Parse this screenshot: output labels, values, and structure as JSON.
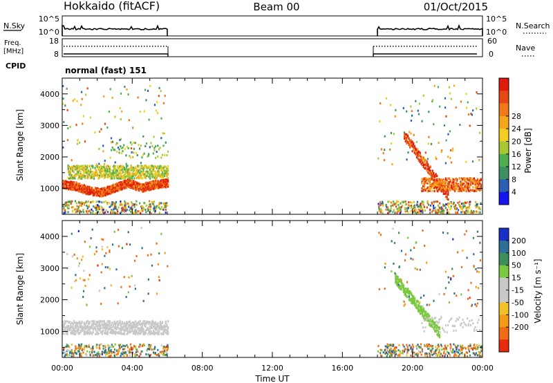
{
  "header": {
    "station": "Hokkaido (fitACF)",
    "beam": "Beam 00",
    "date": "01/Oct/2015"
  },
  "noise_panel": {
    "left_label": "N.Sky",
    "right_label": "N.Search",
    "left_ticks": [
      "10^5",
      "10^0"
    ],
    "right_ticks": [
      "10^5",
      "10^0"
    ]
  },
  "freq_panel": {
    "left_label_line1": "Freq.",
    "left_label_line2": "[MHz]",
    "right_label": "Nave",
    "left_ticks": [
      "18",
      "8"
    ],
    "right_ticks": [
      "60",
      "0"
    ]
  },
  "cpid": {
    "label": "CPID",
    "mode": "normal (fast) 151"
  },
  "time_axis": {
    "label": "Time UT",
    "ticks": [
      "00:00",
      "04:00",
      "08:00",
      "12:00",
      "16:00",
      "20:00",
      "00:00"
    ]
  },
  "chart_data": [
    {
      "type": "heatmap",
      "name": "power",
      "ylabel": "Slant Range [km]",
      "ylim": [
        180,
        4500
      ],
      "yticks": [
        "1000",
        "2000",
        "3000",
        "4000"
      ],
      "xlim": [
        0,
        24
      ],
      "colorbar_label": "Power [dB]",
      "colorbar_ticks": [
        "4",
        "8",
        "12",
        "16",
        "20",
        "24",
        "28"
      ],
      "colors": [
        "#1515ee",
        "#2a5fb5",
        "#3f8f64",
        "#4fae50",
        "#a8c832",
        "#f3cd21",
        "#f4a71c",
        "#f27a16",
        "#e54812",
        "#e01b0c"
      ],
      "observed_intervals_hours": [
        [
          0,
          6
        ],
        [
          18,
          24
        ]
      ],
      "features": [
        {
          "desc": "main echo band",
          "t_start": 0.0,
          "t_end": 6.0,
          "range_center_km": [
            1150,
            1100,
            950,
            900,
            1050,
            1200,
            1050,
            1150,
            1200
          ],
          "thickness_km": 260,
          "power_db": 26
        },
        {
          "desc": "upper band",
          "t_start": 0.3,
          "t_end": 6.0,
          "range_km": 1550,
          "power_db": 16
        },
        {
          "desc": "scattered echoes",
          "t_start": 2.7,
          "t_end": 6.0,
          "range_km": 2250,
          "power_db": 12
        },
        {
          "desc": "descending trace",
          "t_start": 19.5,
          "t_end": 22.0,
          "range_from_km": 2700,
          "range_to_km": 800,
          "power_db": 26
        },
        {
          "desc": "evening band",
          "t_start": 20.5,
          "t_end": 24.0,
          "range_km": 1150,
          "power_db": 24
        }
      ]
    },
    {
      "type": "heatmap",
      "name": "velocity",
      "ylabel": "Slant Range [km]",
      "ylim": [
        180,
        4500
      ],
      "yticks": [
        "1000",
        "2000",
        "3000",
        "4000"
      ],
      "xlim": [
        0,
        24
      ],
      "colorbar_label": "Velocity [m s⁻¹]",
      "colorbar_ticks": [
        "200",
        "100",
        "50",
        "15",
        "-15",
        "-50",
        "-100",
        "-200"
      ],
      "colors": [
        "#1a2fc5",
        "#2e6f9a",
        "#3c8f5a",
        "#7ac93f",
        "#c8c8c8",
        "#c8c8c8",
        "#f2c12a",
        "#f39a1b",
        "#ef6b14",
        "#e82a0d"
      ],
      "observed_intervals_hours": [
        [
          0,
          6
        ],
        [
          18,
          24
        ]
      ],
      "features": [
        {
          "desc": "ground scatter band",
          "t_start": 0.0,
          "t_end": 6.0,
          "range_km": 1150,
          "velocity": 0
        },
        {
          "desc": "descending ionospheric trace",
          "t_start": 19.0,
          "t_end": 21.5,
          "range_from_km": 2700,
          "range_to_km": 1000,
          "velocity": 35
        },
        {
          "desc": "evening ground scatter",
          "t_start": 20.5,
          "t_end": 24.0,
          "range_km": 1250,
          "velocity": 0
        }
      ]
    }
  ]
}
